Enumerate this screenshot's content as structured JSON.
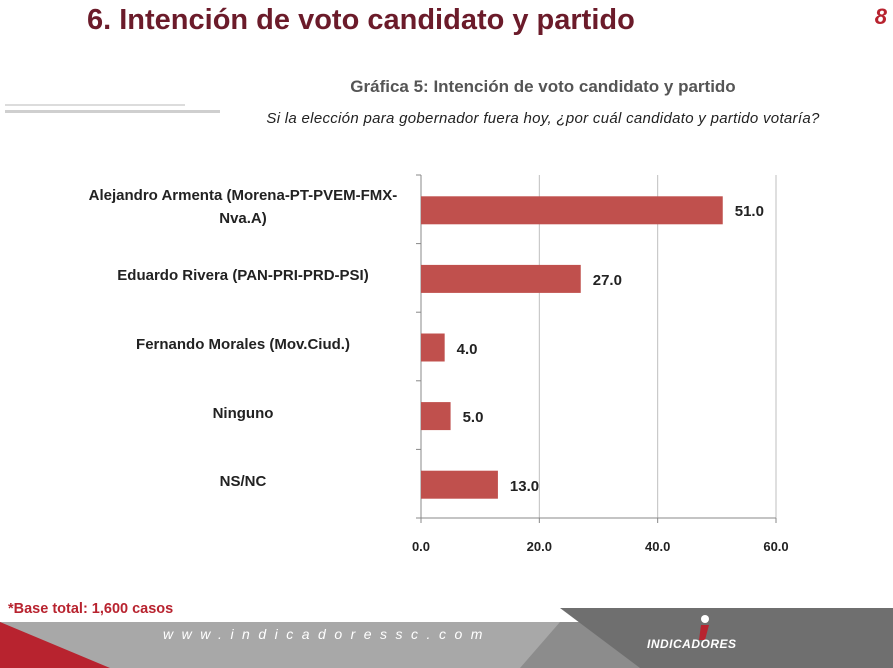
{
  "header": {
    "title": "6. Intención de voto candidato y partido",
    "page_number": "8"
  },
  "chart_data": {
    "type": "bar",
    "orientation": "horizontal",
    "title": "Gráfica 5: Intención de voto candidato y partido",
    "subtitle": "Si  la elección para gobernador fuera hoy, ¿por cuál candidato y partido votaría?",
    "categories": [
      "Alejandro Armenta (Morena-PT-PVEM-FMX-Nva.A)",
      "Eduardo Rivera (PAN-PRI-PRD-PSI)",
      "Fernando Morales (Mov.Ciud.)",
      "Ninguno",
      "NS/NC"
    ],
    "values": [
      51.0,
      27.0,
      4.0,
      5.0,
      13.0
    ],
    "value_labels": [
      "51.0",
      "27.0",
      "4.0",
      "5.0",
      "13.0"
    ],
    "xlim": [
      0,
      60
    ],
    "xticks": [
      "0.0",
      "20.0",
      "40.0",
      "60.0"
    ],
    "grid": "vertical",
    "bar_color": "#c0504d"
  },
  "footer": {
    "base_note": "*Base total: 1,600 casos",
    "website": "www.indicadoressc.com",
    "logo_text": "INDICADORES"
  },
  "colors": {
    "title": "#6b1b2a",
    "accent_red": "#b8232f",
    "bar": "#c0504d"
  }
}
